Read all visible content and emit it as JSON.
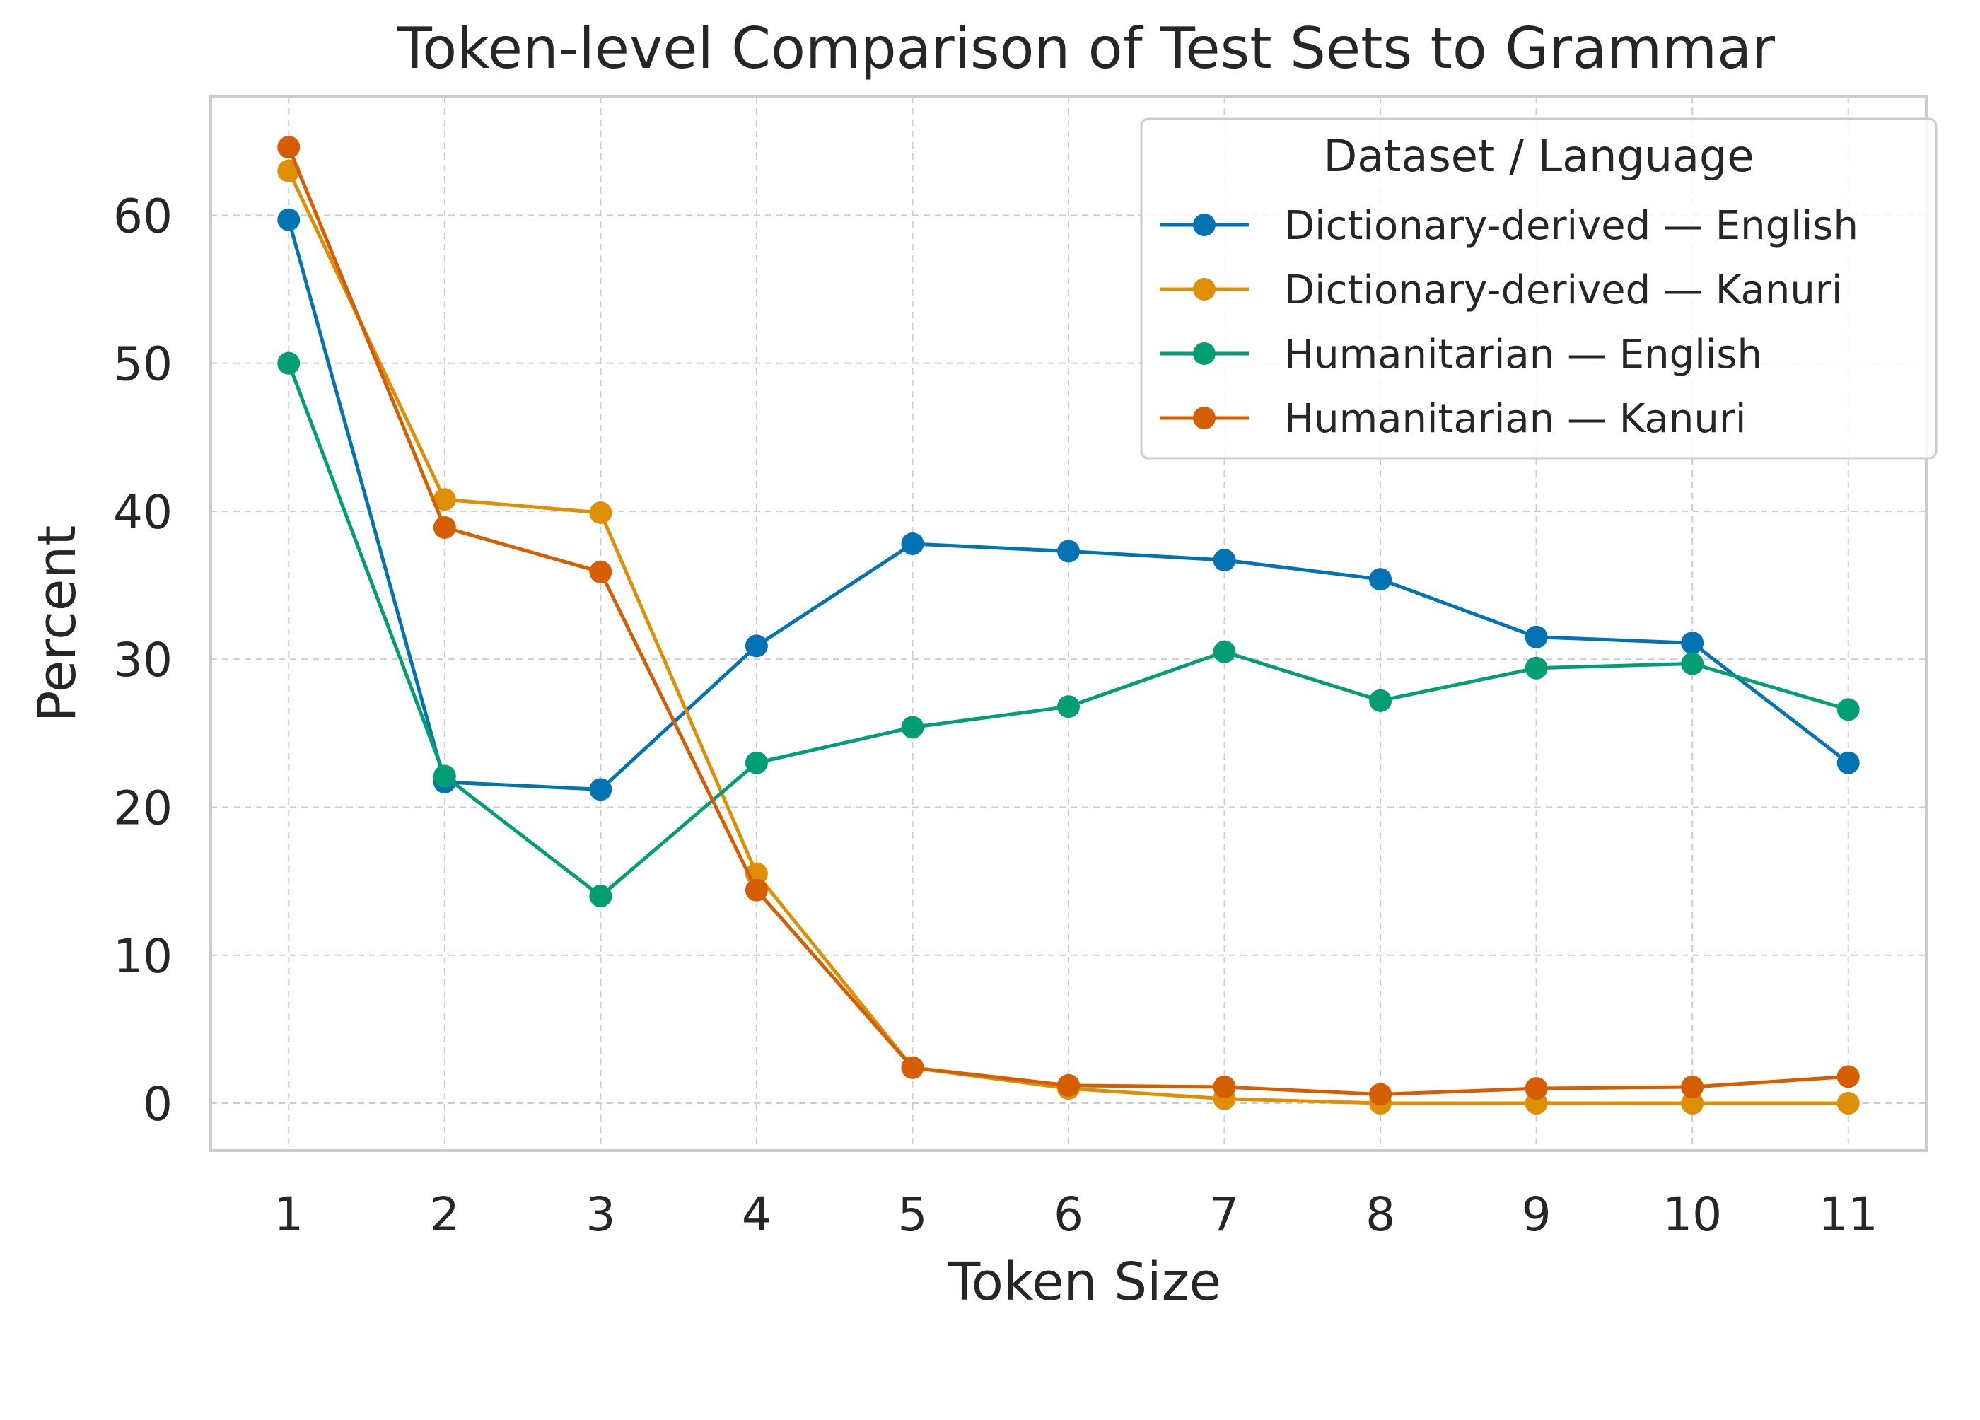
{
  "chart_data": {
    "type": "line",
    "title": "Token-level Comparison of Test Sets to Grammar",
    "xlabel": "Token Size",
    "ylabel": "Percent",
    "x": [
      1,
      2,
      3,
      4,
      5,
      6,
      7,
      8,
      9,
      10,
      11
    ],
    "xlim": [
      0.5,
      11.5
    ],
    "ylim": [
      -3.2,
      68
    ],
    "yticks": [
      0,
      10,
      20,
      30,
      40,
      50,
      60
    ],
    "grid": true,
    "legend": {
      "title": "Dataset / Language",
      "placement": "top-right"
    },
    "series": [
      {
        "name": "Dictionary-derived — English",
        "color": "#0173b2",
        "values": [
          59.7,
          21.7,
          21.2,
          30.9,
          37.8,
          37.3,
          36.7,
          35.4,
          31.5,
          31.1,
          23.0
        ]
      },
      {
        "name": "Dictionary-derived — Kanuri",
        "color": "#de8f05",
        "values": [
          63.0,
          40.8,
          39.9,
          15.5,
          2.4,
          1.0,
          0.3,
          0.0,
          0.0,
          0.0,
          0.0
        ]
      },
      {
        "name": "Humanitarian — English",
        "color": "#029e73",
        "values": [
          50.0,
          22.1,
          14.0,
          23.0,
          25.4,
          26.8,
          30.5,
          27.2,
          29.4,
          29.7,
          26.6
        ]
      },
      {
        "name": "Humanitarian — Kanuri",
        "color": "#d55e00",
        "values": [
          64.6,
          38.9,
          35.9,
          14.4,
          2.4,
          1.2,
          1.1,
          0.6,
          1.0,
          1.1,
          1.8
        ]
      }
    ]
  }
}
